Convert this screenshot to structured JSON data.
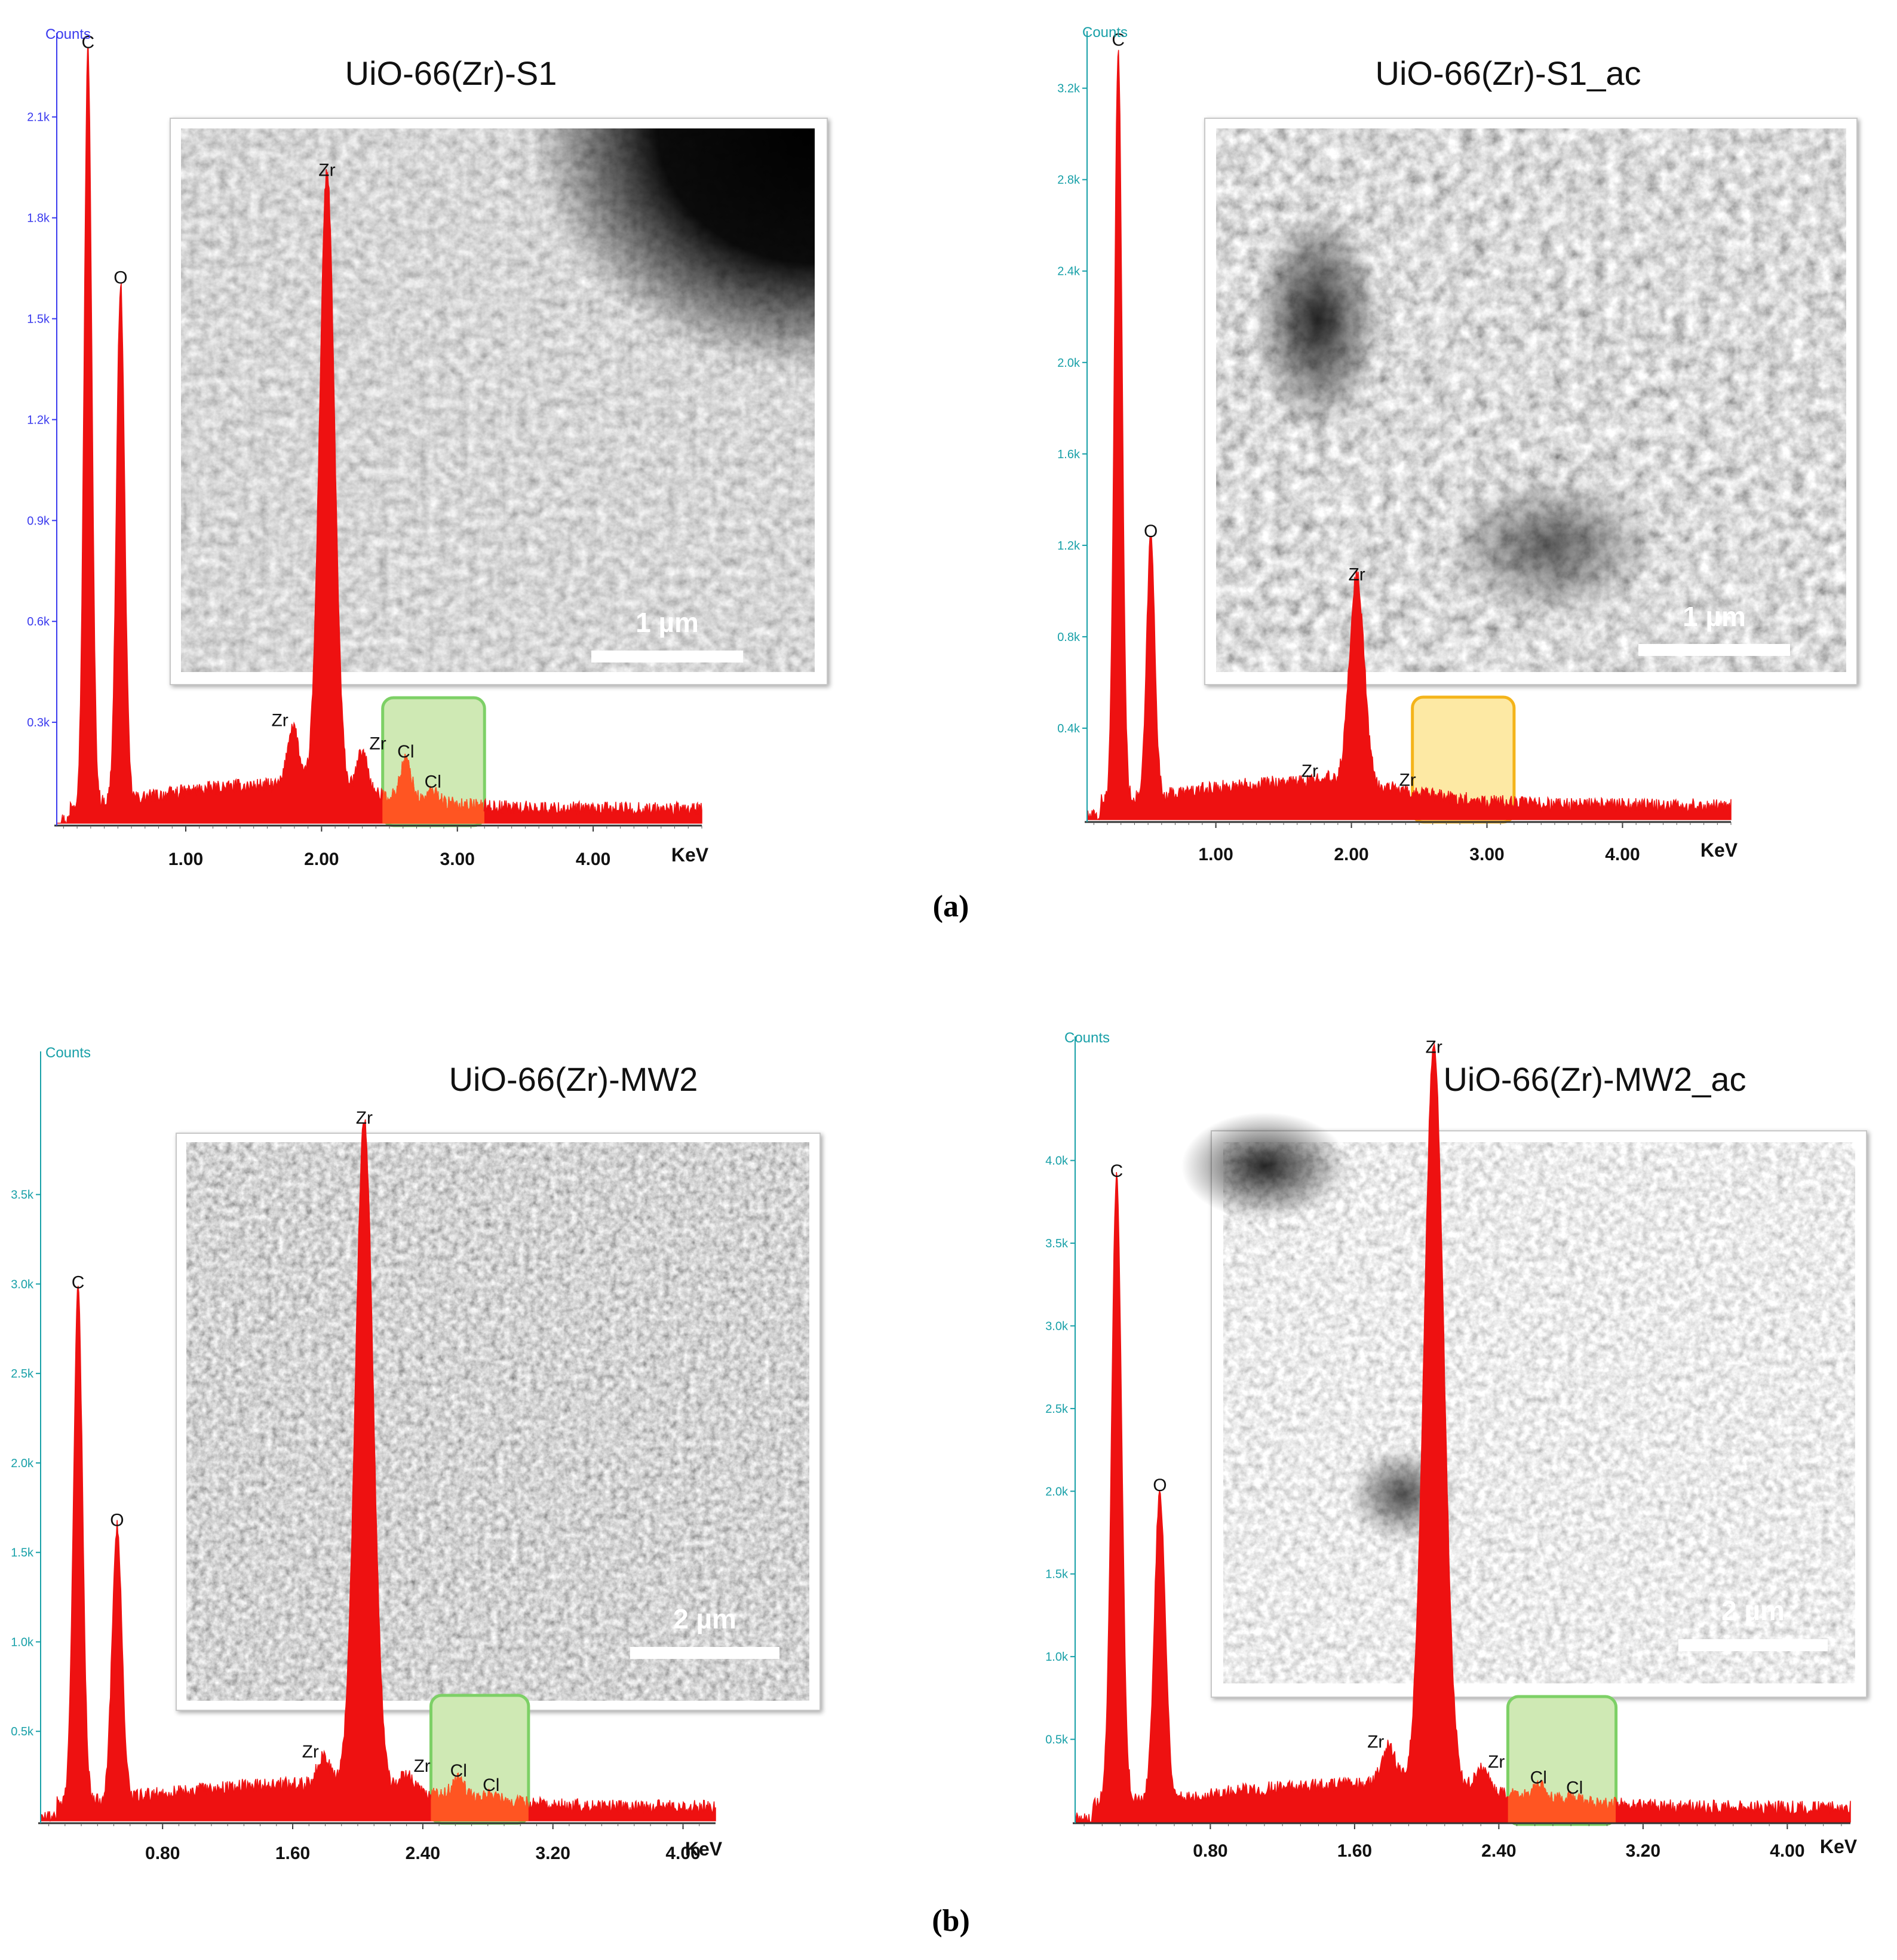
{
  "colors": {
    "spectrum": "#ee1111",
    "cl_fill": "#ff5522",
    "box_green_fill": "#cfe9b4",
    "box_green_stroke": "#7dd066",
    "box_yellow_fill": "#fde9a4",
    "box_yellow_stroke": "#f4b41a",
    "tick_blue": "#3a3aee",
    "tick_teal": "#18a0a8"
  },
  "figure": {
    "label_a": "(a)",
    "label_b": "(b)"
  },
  "chart_data": [
    {
      "type": "area",
      "panel": "a-left",
      "title": "UiO-66(Zr)-S1",
      "ylabel": "Counts",
      "xlabel": "KeV",
      "x_ticks": [
        "1.00",
        "2.00",
        "3.00",
        "4.00"
      ],
      "y_ticks": [
        "0.3k",
        "0.6k",
        "0.9k",
        "1.2k",
        "1.5k",
        "1.8k",
        "2.1k"
      ],
      "xlim": [
        0.05,
        4.8
      ],
      "ylim": [
        0,
        2.35
      ],
      "peaks": [
        {
          "label": "C",
          "x": 0.28,
          "y": 2.28
        },
        {
          "label": "O",
          "x": 0.52,
          "y": 1.58
        },
        {
          "label": "Zr",
          "x": 1.79,
          "y": 0.25
        },
        {
          "label": "Zr",
          "x": 2.04,
          "y": 1.9
        },
        {
          "label": "Zr",
          "x": 2.3,
          "y": 0.18
        },
        {
          "label": "Cl",
          "x": 2.62,
          "y": 0.16
        },
        {
          "label": "Cl",
          "x": 2.82,
          "y": 0.07
        }
      ],
      "highlight": {
        "x_range": [
          2.45,
          3.2
        ],
        "style": "green",
        "cl_fill": true
      },
      "inset": {
        "scale_bar": "1 µm",
        "tone": "s1"
      }
    },
    {
      "type": "area",
      "panel": "a-right",
      "title": "UiO-66(Zr)-S1_ac",
      "ylabel": "Counts",
      "xlabel": "KeV",
      "x_ticks": [
        "1.00",
        "2.00",
        "3.00",
        "4.00"
      ],
      "y_ticks": [
        "0.4k",
        "0.8k",
        "1.2k",
        "1.6k",
        "2.0k",
        "2.4k",
        "2.8k",
        "3.2k"
      ],
      "xlim": [
        0.05,
        4.8
      ],
      "ylim": [
        0,
        3.45
      ],
      "peaks": [
        {
          "label": "C",
          "x": 0.28,
          "y": 3.35
        },
        {
          "label": "O",
          "x": 0.52,
          "y": 1.2
        },
        {
          "label": "Zr",
          "x": 1.79,
          "y": 0.13
        },
        {
          "label": "Zr",
          "x": 2.04,
          "y": 1.01
        },
        {
          "label": "Zr",
          "x": 2.3,
          "y": 0.09
        }
      ],
      "highlight": {
        "x_range": [
          2.45,
          3.2
        ],
        "style": "yellow",
        "cl_fill": false
      },
      "inset": {
        "scale_bar": "1 µm",
        "tone": "s1ac"
      }
    },
    {
      "type": "area",
      "panel": "b-left",
      "title": "UiO-66(Zr)-MW2",
      "ylabel": "Counts",
      "xlabel": "KeV",
      "x_ticks": [
        "0.80",
        "1.60",
        "2.40",
        "3.20",
        "4.00"
      ],
      "y_ticks": [
        "0.5k",
        "1.0k",
        "1.5k",
        "2.0k",
        "2.5k",
        "3.0k",
        "3.5k"
      ],
      "xlim": [
        0.05,
        4.2
      ],
      "ylim": [
        0,
        4.3
      ],
      "peaks": [
        {
          "label": "C",
          "x": 0.28,
          "y": 2.93
        },
        {
          "label": "O",
          "x": 0.52,
          "y": 1.6
        },
        {
          "label": "Zr",
          "x": 1.79,
          "y": 0.28
        },
        {
          "label": "Zr",
          "x": 2.04,
          "y": 3.85
        },
        {
          "label": "Zr",
          "x": 2.3,
          "y": 0.2
        },
        {
          "label": "Cl",
          "x": 2.62,
          "y": 0.18
        },
        {
          "label": "Cl",
          "x": 2.82,
          "y": 0.1
        }
      ],
      "highlight": {
        "x_range": [
          2.45,
          3.05
        ],
        "style": "green",
        "cl_fill": true
      },
      "inset": {
        "scale_bar": "2 µm",
        "tone": "mw2"
      }
    },
    {
      "type": "area",
      "panel": "b-right",
      "title": "UiO-66(Zr)-MW2_ac",
      "ylabel": "Counts",
      "xlabel": "KeV",
      "x_ticks": [
        "0.80",
        "1.60",
        "2.40",
        "3.20",
        "4.00"
      ],
      "y_ticks": [
        "0.5k",
        "1.0k",
        "1.5k",
        "2.0k",
        "2.5k",
        "3.0k",
        "3.5k",
        "4.0k"
      ],
      "xlim": [
        0.05,
        4.35
      ],
      "ylim": [
        0,
        4.75
      ],
      "peaks": [
        {
          "label": "C",
          "x": 0.28,
          "y": 3.85
        },
        {
          "label": "O",
          "x": 0.52,
          "y": 1.95
        },
        {
          "label": "Zr",
          "x": 1.79,
          "y": 0.37
        },
        {
          "label": "Zr",
          "x": 2.04,
          "y": 4.6
        },
        {
          "label": "Zr",
          "x": 2.3,
          "y": 0.25
        },
        {
          "label": "Cl",
          "x": 2.62,
          "y": 0.16
        },
        {
          "label": "Cl",
          "x": 2.82,
          "y": 0.1
        }
      ],
      "highlight": {
        "x_range": [
          2.45,
          3.05
        ],
        "style": "green",
        "cl_fill": true
      },
      "inset": {
        "scale_bar": "2 µm",
        "tone": "mw2ac"
      }
    }
  ]
}
